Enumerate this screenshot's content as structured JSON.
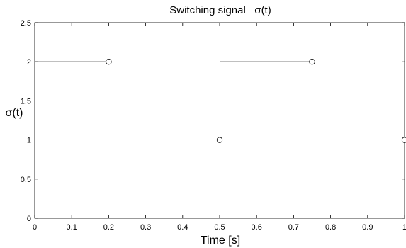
{
  "chart_data": {
    "type": "line",
    "title": "Switching signal   σ(t)",
    "xlabel": "Time [s]",
    "ylabel": "σ(t)",
    "xlim": [
      0,
      1
    ],
    "ylim": [
      0,
      2.5
    ],
    "grid": false,
    "x_ticks": [
      0,
      0.1,
      0.2,
      0.3,
      0.4,
      0.5,
      0.6,
      0.7,
      0.8,
      0.9,
      1
    ],
    "x_tick_labels": [
      "0",
      "0.1",
      "0.2",
      "0.3",
      "0.4",
      "0.5",
      "0.6",
      "0.7",
      "0.8",
      "0.9",
      "1"
    ],
    "y_ticks": [
      0,
      0.5,
      1,
      1.5,
      2,
      2.5
    ],
    "y_tick_labels": [
      "0",
      "0.5",
      "1",
      "1.5",
      "2",
      "2.5"
    ],
    "segments": [
      {
        "x_start": 0,
        "x_end": 0.2,
        "y": 2
      },
      {
        "x_start": 0.2,
        "x_end": 0.5,
        "y": 1
      },
      {
        "x_start": 0.5,
        "x_end": 0.75,
        "y": 2
      },
      {
        "x_start": 0.75,
        "x_end": 1.0,
        "y": 1
      }
    ],
    "open_endpoint_marker": "circle",
    "line_color": "#000000"
  }
}
